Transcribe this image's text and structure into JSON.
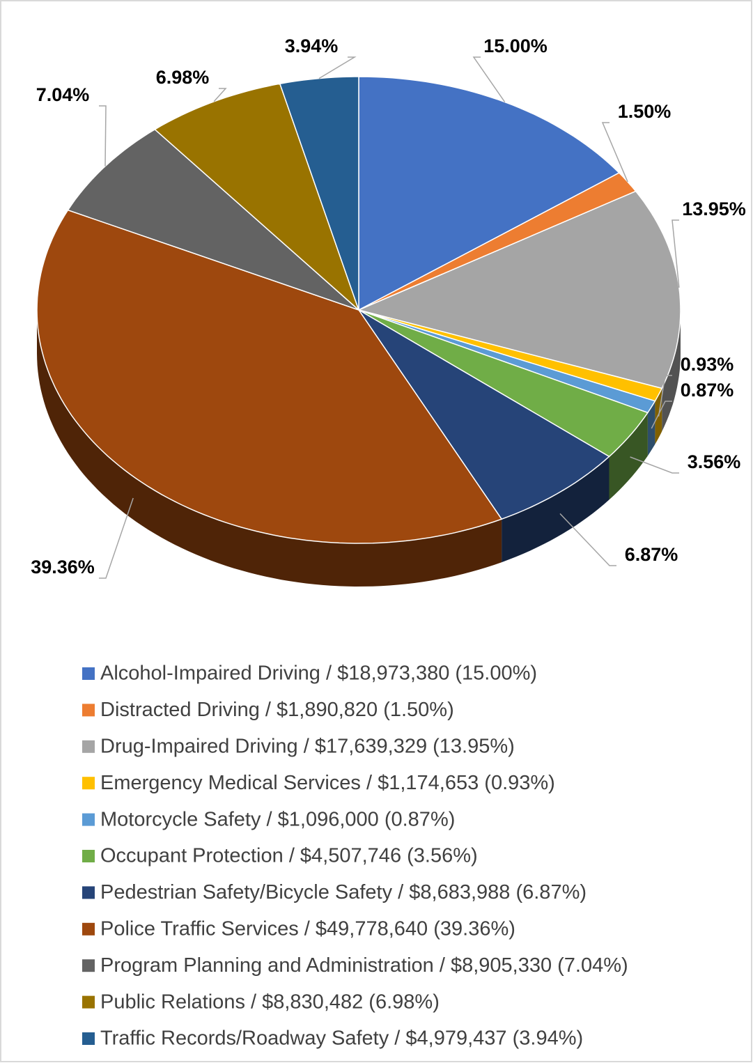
{
  "chart_data": {
    "type": "pie",
    "categories": [
      "Alcohol-Impaired Driving / $18,973,380 (15.00%)",
      "Distracted Driving / $1,890,820 (1.50%)",
      "Drug-Impaired Driving / $17,639,329 (13.95%)",
      "Emergency Medical Services / $1,174,653 (0.93%)",
      "Motorcycle Safety / $1,096,000 (0.87%)",
      "Occupant Protection / $4,507,746 (3.56%)",
      "Pedestrian Safety/Bicycle Safety / $8,683,988 (6.87%)",
      "Police Traffic Services / $49,778,640 (39.36%)",
      "Program Planning and Administration / $8,905,330 (7.04%)",
      "Public Relations / $8,830,482 (6.98%)",
      "Traffic Records/Roadway Safety / $4,979,437 (3.94%)"
    ],
    "values": [
      15.0,
      1.5,
      13.95,
      0.93,
      0.87,
      3.56,
      6.87,
      39.36,
      7.04,
      6.98,
      3.94
    ],
    "value_labels": [
      "15.00%",
      "1.50%",
      "13.95%",
      "0.93%",
      "0.87%",
      "3.56%",
      "6.87%",
      "39.36%",
      "7.04%",
      "6.98%",
      "3.94%"
    ],
    "colors": [
      "#4472c4",
      "#ed7d31",
      "#a5a5a5",
      "#ffc000",
      "#5b9bd5",
      "#70ad47",
      "#264478",
      "#9e480e",
      "#636363",
      "#997300",
      "#255e91"
    ],
    "legend": "bottom"
  }
}
